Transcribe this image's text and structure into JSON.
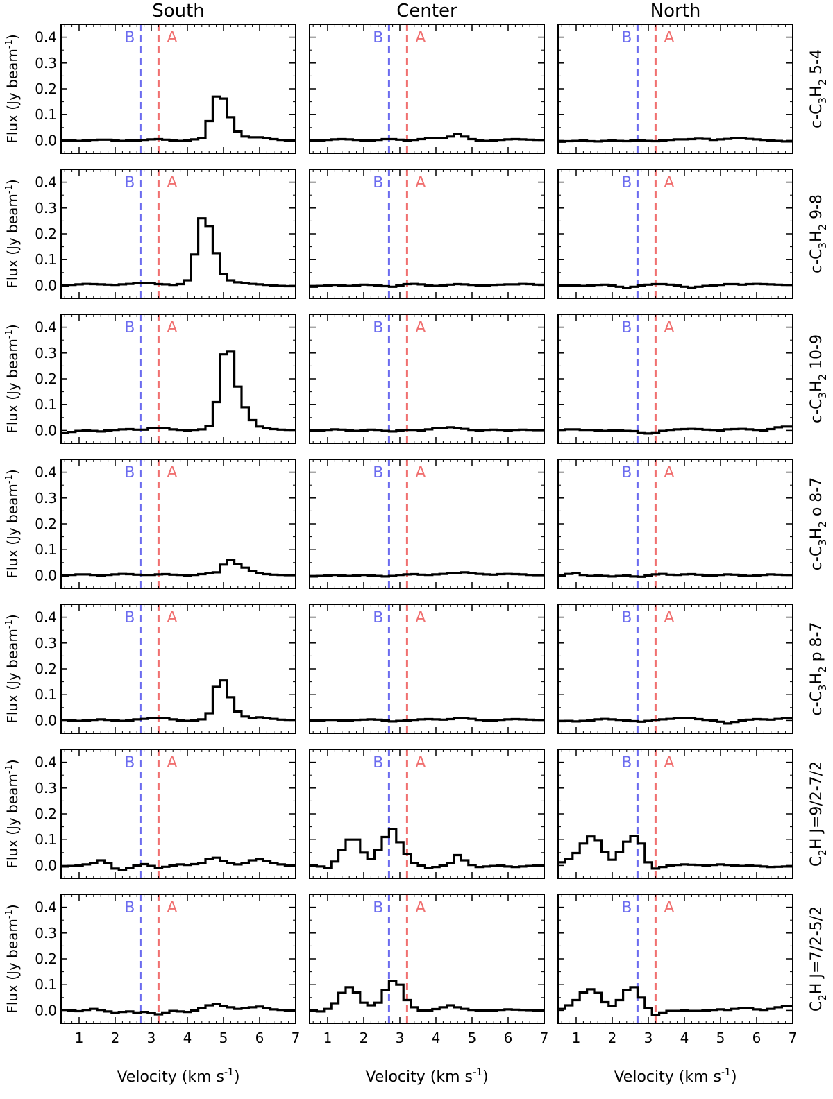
{
  "chart_data": {
    "type": "line",
    "layout": "grid-7x3",
    "step_style": "histogram-step",
    "column_titles": [
      "South",
      "Center",
      "North"
    ],
    "row_labels": [
      {
        "pre": "c-C",
        "sub1": "3",
        "mid": "H",
        "sub2": "2",
        "post": " 5-4"
      },
      {
        "pre": "c-C",
        "sub1": "3",
        "mid": "H",
        "sub2": "2",
        "post": " 9-8"
      },
      {
        "pre": "c-C",
        "sub1": "3",
        "mid": "H",
        "sub2": "2",
        "post": " 10-9"
      },
      {
        "pre": "c-C",
        "sub1": "3",
        "mid": "H",
        "sub2": "2",
        "post": " o 8-7"
      },
      {
        "pre": "c-C",
        "sub1": "3",
        "mid": "H",
        "sub2": "2",
        "post": " p 8-7"
      },
      {
        "pre": "C",
        "sub1": "2",
        "mid": "H J=9/2-7/2",
        "sub2": "",
        "post": ""
      },
      {
        "pre": "C",
        "sub1": "2",
        "mid": "H J=7/2-5/2",
        "sub2": "",
        "post": ""
      }
    ],
    "ylabel": {
      "main": "Flux (Jy beam",
      "sup": "-1",
      "close": ")"
    },
    "xlabel": {
      "main": "Velocity (km s",
      "sup": "-1",
      "close": ")"
    },
    "xlim": [
      0.5,
      7
    ],
    "ylim": [
      -0.05,
      0.45
    ],
    "xticks": [
      1,
      2,
      3,
      4,
      5,
      6,
      7
    ],
    "yticks": [
      0.0,
      0.1,
      0.2,
      0.3,
      0.4
    ],
    "ytick_labels": [
      "0.0",
      "0.1",
      "0.2",
      "0.3",
      "0.4"
    ],
    "reference_lines": [
      {
        "label": "B",
        "x": 2.7,
        "color": "#6b6bef"
      },
      {
        "label": "A",
        "x": 3.2,
        "color": "#f07070"
      }
    ],
    "series_color": "#000000",
    "x": [
      0.6,
      0.8,
      1.0,
      1.2,
      1.4,
      1.6,
      1.8,
      2.0,
      2.2,
      2.4,
      2.6,
      2.8,
      3.0,
      3.2,
      3.4,
      3.6,
      3.8,
      4.0,
      4.2,
      4.4,
      4.6,
      4.8,
      5.0,
      5.2,
      5.4,
      5.6,
      5.8,
      6.0,
      6.2,
      6.4,
      6.6,
      6.8
    ],
    "panels": [
      [
        {
          "values": [
            0.0,
            0.0,
            -0.002,
            0.0,
            0.002,
            0.003,
            0.003,
            0.0,
            -0.002,
            0.0,
            0.0,
            0.002,
            0.004,
            0.005,
            0.003,
            0.0,
            -0.002,
            0.0,
            0.004,
            0.01,
            0.075,
            0.17,
            0.162,
            0.09,
            0.035,
            0.015,
            0.012,
            0.012,
            0.01,
            0.005,
            0.002,
            0.0
          ]
        },
        {
          "values": [
            0.0,
            0.0,
            0.002,
            0.004,
            0.005,
            0.004,
            0.002,
            0.0,
            0.0,
            0.002,
            0.005,
            0.005,
            0.003,
            0.0,
            0.002,
            0.005,
            0.008,
            0.01,
            0.01,
            0.015,
            0.025,
            0.015,
            0.005,
            0.0,
            -0.002,
            0.0,
            0.002,
            0.004,
            0.005,
            0.004,
            0.003,
            0.002
          ]
        },
        {
          "values": [
            -0.005,
            -0.003,
            -0.002,
            0.0,
            -0.003,
            -0.004,
            -0.002,
            0.0,
            -0.002,
            -0.003,
            0.0,
            0.0,
            -0.002,
            -0.003,
            0.0,
            0.002,
            0.004,
            0.004,
            0.005,
            0.007,
            0.006,
            0.002,
            0.004,
            0.006,
            0.008,
            0.01,
            0.006,
            0.004,
            0.002,
            0.0,
            -0.002,
            -0.004
          ]
        }
      ],
      [
        {
          "values": [
            0.0,
            0.002,
            0.004,
            0.006,
            0.005,
            0.004,
            0.003,
            0.002,
            0.004,
            0.006,
            0.008,
            0.01,
            0.008,
            0.005,
            0.004,
            0.002,
            0.005,
            0.02,
            0.12,
            0.26,
            0.23,
            0.125,
            0.045,
            0.02,
            0.012,
            0.01,
            0.006,
            0.004,
            0.002,
            0.0,
            -0.002,
            -0.003
          ]
        },
        {
          "values": [
            -0.005,
            -0.002,
            0.0,
            0.002,
            0.0,
            -0.002,
            0.0,
            0.003,
            0.002,
            0.0,
            -0.003,
            -0.005,
            0.0,
            0.005,
            0.006,
            0.004,
            0.0,
            -0.002,
            0.0,
            0.003,
            0.005,
            0.004,
            0.002,
            0.0,
            0.0,
            0.002,
            0.003,
            0.004,
            0.004,
            0.006,
            0.005,
            0.003
          ]
        },
        {
          "values": [
            0.0,
            0.0,
            0.0,
            -0.002,
            0.0,
            0.002,
            0.003,
            0.0,
            -0.005,
            -0.01,
            -0.005,
            0.0,
            0.003,
            0.005,
            0.005,
            0.003,
            0.0,
            -0.005,
            -0.008,
            -0.005,
            -0.002,
            0.0,
            0.002,
            0.005,
            0.005,
            0.003,
            0.005,
            0.006,
            0.005,
            0.004,
            0.003,
            0.002
          ]
        }
      ],
      [
        {
          "values": [
            -0.01,
            -0.006,
            -0.002,
            0.0,
            -0.002,
            -0.004,
            0.0,
            0.002,
            0.004,
            0.005,
            0.003,
            0.003,
            0.008,
            0.01,
            0.008,
            0.004,
            0.002,
            0.0,
            0.002,
            0.004,
            0.018,
            0.11,
            0.295,
            0.305,
            0.17,
            0.09,
            0.04,
            0.015,
            0.01,
            0.005,
            0.003,
            0.002
          ]
        },
        {
          "values": [
            0.0,
            0.0,
            0.002,
            0.004,
            0.003,
            0.0,
            -0.002,
            0.0,
            0.003,
            0.002,
            -0.002,
            -0.004,
            0.0,
            0.002,
            0.002,
            0.0,
            0.004,
            0.008,
            0.01,
            0.012,
            0.01,
            0.006,
            0.002,
            0.0,
            0.002,
            0.003,
            0.002,
            0.0,
            0.002,
            0.003,
            0.002,
            0.001
          ]
        },
        {
          "values": [
            0.002,
            0.004,
            0.004,
            0.002,
            0.002,
            0.0,
            -0.002,
            0.0,
            0.0,
            -0.002,
            -0.003,
            -0.008,
            -0.012,
            -0.008,
            -0.002,
            0.002,
            0.004,
            0.005,
            0.006,
            0.005,
            0.003,
            0.002,
            0.0,
            0.004,
            0.005,
            0.006,
            0.004,
            0.002,
            0.0,
            0.005,
            0.012,
            0.015
          ]
        }
      ],
      [
        {
          "values": [
            0.0,
            0.002,
            0.004,
            0.004,
            0.002,
            0.0,
            0.002,
            0.004,
            0.006,
            0.005,
            0.003,
            0.002,
            0.002,
            0.004,
            0.005,
            0.003,
            0.002,
            0.0,
            0.002,
            0.005,
            0.008,
            0.012,
            0.042,
            0.06,
            0.045,
            0.03,
            0.018,
            0.008,
            0.005,
            0.003,
            0.002,
            0.001
          ]
        },
        {
          "values": [
            -0.004,
            -0.002,
            0.0,
            0.002,
            0.0,
            -0.002,
            0.0,
            0.002,
            0.0,
            -0.002,
            -0.004,
            -0.002,
            0.002,
            0.004,
            0.005,
            0.003,
            0.002,
            0.004,
            0.006,
            0.008,
            0.008,
            0.012,
            0.01,
            0.006,
            0.004,
            0.003,
            0.005,
            0.006,
            0.005,
            0.004,
            0.002,
            0.001
          ]
        },
        {
          "values": [
            0.0,
            0.006,
            0.01,
            0.002,
            -0.002,
            0.0,
            -0.002,
            -0.004,
            -0.002,
            0.0,
            -0.004,
            -0.005,
            0.0,
            0.004,
            0.006,
            0.003,
            0.002,
            0.004,
            0.005,
            0.003,
            0.0,
            0.0,
            0.002,
            0.004,
            0.003,
            0.0,
            -0.002,
            0.0,
            0.002,
            0.004,
            0.003,
            0.002
          ]
        }
      ],
      [
        {
          "values": [
            0.002,
            0.0,
            -0.002,
            0.0,
            0.002,
            0.004,
            0.002,
            0.0,
            -0.002,
            0.0,
            0.004,
            0.006,
            0.008,
            0.01,
            0.008,
            0.004,
            0.0,
            -0.002,
            0.0,
            0.004,
            0.028,
            0.13,
            0.155,
            0.09,
            0.035,
            0.015,
            0.01,
            0.012,
            0.01,
            0.006,
            0.003,
            0.002
          ]
        },
        {
          "values": [
            0.0,
            0.0,
            0.002,
            0.002,
            0.0,
            0.0,
            0.002,
            0.003,
            0.004,
            0.003,
            0.0,
            -0.004,
            -0.002,
            0.0,
            0.002,
            0.004,
            0.005,
            0.004,
            0.003,
            0.005,
            0.008,
            0.01,
            0.006,
            0.002,
            0.0,
            0.0,
            0.002,
            0.004,
            0.005,
            0.004,
            0.003,
            0.002
          ]
        },
        {
          "values": [
            -0.003,
            -0.002,
            -0.004,
            -0.002,
            0.0,
            0.004,
            0.006,
            0.004,
            0.002,
            0.0,
            -0.003,
            -0.005,
            -0.002,
            0.002,
            0.004,
            0.006,
            0.008,
            0.01,
            0.008,
            0.005,
            0.002,
            0.0,
            -0.005,
            -0.012,
            -0.006,
            0.0,
            0.003,
            0.005,
            0.004,
            0.003,
            0.006,
            0.008
          ]
        }
      ],
      [
        {
          "values": [
            -0.004,
            -0.002,
            0.0,
            0.004,
            0.01,
            0.02,
            0.008,
            -0.012,
            -0.018,
            -0.01,
            0.0,
            0.005,
            -0.002,
            -0.01,
            -0.005,
            0.0,
            0.004,
            0.002,
            0.005,
            0.01,
            0.025,
            0.03,
            0.018,
            0.01,
            0.004,
            0.01,
            0.02,
            0.024,
            0.018,
            0.01,
            0.004,
            0.0
          ]
        },
        {
          "values": [
            0.0,
            -0.004,
            -0.01,
            0.015,
            0.06,
            0.1,
            0.1,
            0.05,
            0.025,
            0.06,
            0.11,
            0.14,
            0.09,
            0.045,
            0.01,
            0.0,
            -0.01,
            -0.006,
            0.0,
            0.01,
            0.04,
            0.02,
            0.002,
            -0.006,
            -0.004,
            -0.002,
            0.0,
            -0.004,
            -0.006,
            -0.004,
            -0.002,
            0.0
          ]
        },
        {
          "values": [
            0.012,
            0.025,
            0.048,
            0.085,
            0.112,
            0.098,
            0.052,
            0.022,
            0.052,
            0.092,
            0.115,
            0.085,
            0.012,
            -0.012,
            -0.006,
            0.0,
            0.002,
            0.004,
            0.003,
            0.002,
            0.0,
            0.002,
            0.004,
            0.002,
            0.0,
            -0.002,
            0.0,
            -0.002,
            -0.004,
            -0.006,
            -0.005,
            -0.004
          ]
        }
      ],
      [
        {
          "values": [
            0.002,
            0.0,
            -0.003,
            0.002,
            0.006,
            0.002,
            -0.004,
            -0.008,
            -0.006,
            -0.004,
            -0.008,
            -0.006,
            -0.01,
            -0.015,
            -0.008,
            -0.002,
            -0.004,
            -0.006,
            0.0,
            0.008,
            0.02,
            0.025,
            0.018,
            0.012,
            0.006,
            0.01,
            0.012,
            0.015,
            0.01,
            0.004,
            0.002,
            0.0
          ]
        },
        {
          "values": [
            0.0,
            -0.004,
            0.006,
            0.028,
            0.068,
            0.09,
            0.07,
            0.03,
            0.02,
            0.03,
            0.08,
            0.115,
            0.1,
            0.04,
            0.012,
            0.0,
            0.0,
            0.005,
            0.012,
            0.02,
            0.012,
            0.006,
            0.002,
            0.0,
            0.0,
            0.0,
            0.002,
            0.004,
            0.003,
            0.002,
            0.001,
            0.0
          ]
        },
        {
          "values": [
            0.006,
            0.02,
            0.04,
            0.07,
            0.082,
            0.068,
            0.032,
            0.018,
            0.04,
            0.08,
            0.09,
            0.05,
            0.01,
            -0.018,
            -0.008,
            -0.002,
            -0.002,
            0.0,
            -0.002,
            -0.002,
            0.0,
            0.002,
            0.004,
            0.002,
            0.006,
            0.01,
            0.008,
            0.004,
            0.002,
            0.006,
            0.012,
            0.018
          ]
        }
      ]
    ]
  }
}
